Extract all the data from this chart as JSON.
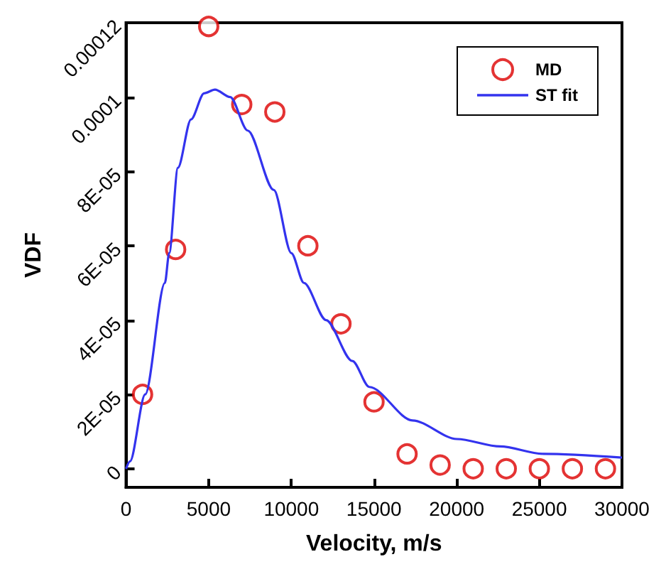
{
  "chart_data": {
    "type": "scatter",
    "xlabel": "Velocity, m/s",
    "ylabel": "VDF",
    "xlim": [
      0,
      30000
    ],
    "xticks": [
      0,
      5000,
      10000,
      15000,
      20000,
      25000,
      30000
    ],
    "ylim": [
      -5e-06,
      0.00012
    ],
    "yticks": [
      0,
      {
        "value": 2e-05,
        "label": "2E-05"
      },
      {
        "value": 4e-05,
        "label": "4E-05"
      },
      {
        "value": 6e-05,
        "label": "6E-05"
      },
      {
        "value": 8e-05,
        "label": "8E-05"
      },
      0.0001,
      0.00012
    ],
    "grid": false,
    "legend": "top right",
    "series": [
      {
        "name": "MD",
        "marker": "circle",
        "color": "#dd0000",
        "x": [
          1000,
          3000,
          5000,
          7000,
          9000,
          11000,
          13000,
          15000,
          17000,
          19000,
          21000,
          23000,
          25000,
          27000,
          29000
        ],
        "values": [
          2e-05,
          5.9e-05,
          0.000119,
          9.8e-05,
          9.6e-05,
          6e-05,
          3.9e-05,
          1.8e-05,
          4e-06,
          1e-06,
          0,
          0,
          0,
          0,
          0
        ]
      },
      {
        "name": "ST fit",
        "type": "line",
        "marker": "none",
        "line_style": "solid",
        "color": "#3333ee",
        "x": [
          0,
          240,
          1160,
          2350,
          2610,
          3140,
          3930,
          4720,
          5380,
          6300,
          7360,
          8940,
          10000,
          10760,
          12100,
          13690,
          14720,
          17330,
          20010,
          22630,
          25260,
          30000
        ],
        "values": [
          0,
          2e-06,
          2e-05,
          5e-05,
          5.8e-05,
          8.1e-05,
          9.4e-05,
          0.000101,
          0.000102,
          0.0001,
          9.1e-05,
          7.5e-05,
          5.8e-05,
          5e-05,
          4e-05,
          2.9e-05,
          2.2e-05,
          1.3e-05,
          8e-06,
          6e-06,
          4e-06,
          3e-06
        ]
      }
    ]
  }
}
